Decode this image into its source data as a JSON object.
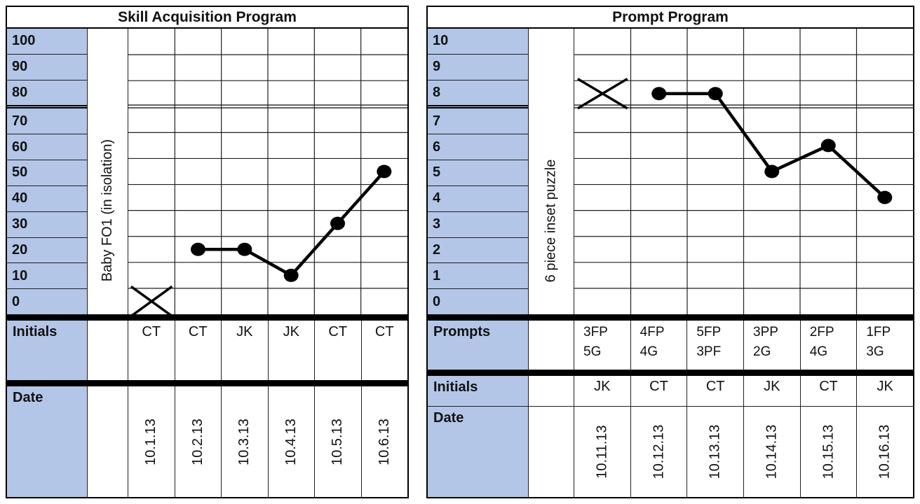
{
  "colors": {
    "header_fill": "#b4c6e7",
    "ink": "#000000",
    "gridline": "#1f1f1f"
  },
  "chart_data": [
    {
      "type": "line",
      "title": "Skill Acquisition Program",
      "ylabel": "Baby FO1 (in isolation)",
      "ylim": [
        0,
        100
      ],
      "y_step": 10,
      "y_ticks": [
        "100",
        "90",
        "80",
        "70",
        "60",
        "50",
        "40",
        "30",
        "20",
        "10",
        "0"
      ],
      "criterion_line_below": 80,
      "grid": true,
      "legend": "none",
      "x_categories": [
        "10.1.13",
        "10.2.13",
        "10.3.13",
        "10.4.13",
        "10.5.13",
        "10.6.13"
      ],
      "values": [
        0,
        20,
        20,
        10,
        30,
        50
      ],
      "markers": [
        "x",
        "dot",
        "dot",
        "dot",
        "dot",
        "dot"
      ],
      "row_headers": {
        "initials": "Initials",
        "date": "Date"
      },
      "initials": [
        "CT",
        "CT",
        "JK",
        "JK",
        "CT",
        "CT"
      ]
    },
    {
      "type": "line",
      "title": "Prompt Program",
      "ylabel": "6 piece inset puzzle",
      "ylim": [
        0,
        10
      ],
      "y_step": 1,
      "y_ticks": [
        "10",
        "9",
        "8",
        "7",
        "6",
        "5",
        "4",
        "3",
        "2",
        "1",
        "0"
      ],
      "criterion_line_below": 8,
      "grid": true,
      "legend": "none",
      "x_categories": [
        "10.11.13",
        "10.12.13",
        "10.13.13",
        "10.14.13",
        "10.15.13",
        "10.16.13"
      ],
      "values": [
        8,
        8,
        8,
        5,
        6,
        4
      ],
      "markers": [
        "x",
        "dot",
        "dot",
        "dot",
        "dot",
        "dot"
      ],
      "row_headers": {
        "prompts": "Prompts",
        "initials": "Initials",
        "date": "Date"
      },
      "prompts": [
        [
          "3FP",
          "5G"
        ],
        [
          "4FP",
          "4G"
        ],
        [
          "5FP",
          "3PF"
        ],
        [
          "3PP",
          "2G"
        ],
        [
          "2FP",
          "4G"
        ],
        [
          "1FP",
          "3G"
        ]
      ],
      "initials": [
        "JK",
        "CT",
        "CT",
        "JK",
        "CT",
        "JK"
      ]
    }
  ]
}
